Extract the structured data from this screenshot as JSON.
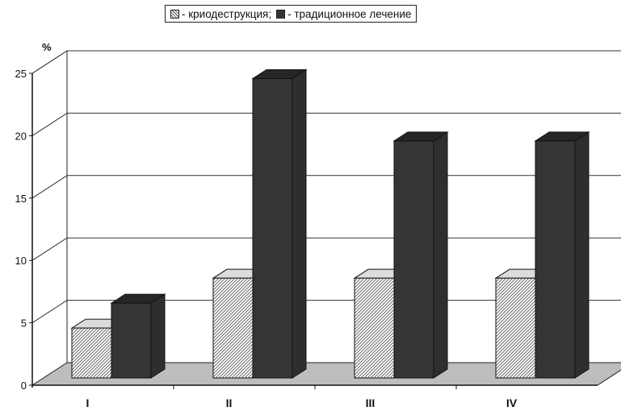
{
  "chart_data": {
    "type": "bar",
    "title": "",
    "xlabel": "",
    "ylabel": "%",
    "ylim": [
      0,
      25
    ],
    "yticks": [
      0,
      5,
      10,
      15,
      20,
      25
    ],
    "grid": true,
    "legend_position": "top-center",
    "categories": [
      "I",
      "II",
      "III",
      "IV"
    ],
    "series": [
      {
        "name": "- криодеструкция;",
        "values": [
          4,
          8,
          8,
          8
        ],
        "fill": "hatched",
        "color": "#d9d9d9"
      },
      {
        "name": "- традиционное лечение",
        "values": [
          6,
          24,
          19,
          19
        ],
        "fill": "solid",
        "color": "#353535"
      }
    ]
  },
  "colors": {
    "floor": "#bdbdbd",
    "wall": "#ffffff",
    "dark_bar": "#353535",
    "hatch_line": "#6a6a6a"
  }
}
